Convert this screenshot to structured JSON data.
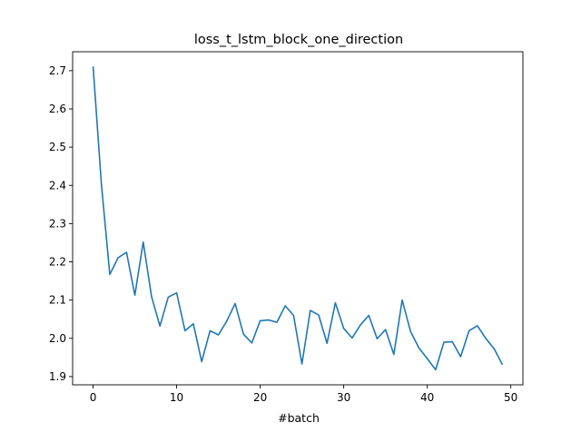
{
  "chart_data": {
    "type": "line",
    "title": "loss_t_lstm_block_one_direction",
    "xlabel": "#batch",
    "ylabel": "",
    "xlim": [
      -2.45,
      51.45
    ],
    "ylim": [
      1.8785,
      2.7495
    ],
    "xticks": [
      0,
      10,
      20,
      30,
      40,
      50
    ],
    "yticks": [
      1.9,
      2.0,
      2.1,
      2.2,
      2.3,
      2.4,
      2.5,
      2.6,
      2.7
    ],
    "xtick_labels": [
      "0",
      "10",
      "20",
      "30",
      "40",
      "50"
    ],
    "ytick_labels": [
      "1.9",
      "2.0",
      "2.1",
      "2.2",
      "2.3",
      "2.4",
      "2.5",
      "2.6",
      "2.7"
    ],
    "grid": false,
    "line_color": "#1f77b4",
    "series": [
      {
        "x": [
          0,
          1,
          2,
          3,
          4,
          5,
          6,
          7,
          8,
          9,
          10,
          11,
          12,
          13,
          14,
          15,
          16,
          17,
          18,
          19,
          20,
          21,
          22,
          23,
          24,
          25,
          26,
          27,
          28,
          29,
          30,
          31,
          32,
          33,
          34,
          35,
          36,
          37,
          38,
          39,
          40,
          41,
          42,
          43,
          44,
          45,
          46,
          47,
          48,
          49
        ],
        "values": [
          2.711,
          2.402,
          2.167,
          2.211,
          2.225,
          2.113,
          2.252,
          2.109,
          2.032,
          2.108,
          2.119,
          2.02,
          2.038,
          1.939,
          2.02,
          2.009,
          2.045,
          2.091,
          2.011,
          1.988,
          2.046,
          2.048,
          2.042,
          2.085,
          2.06,
          1.933,
          2.073,
          2.061,
          1.987,
          2.093,
          2.026,
          2.001,
          2.035,
          2.06,
          1.999,
          2.023,
          1.958,
          2.1,
          2.018,
          1.975,
          1.947,
          1.918,
          1.99,
          1.991,
          1.952,
          2.02,
          2.033,
          2.0,
          1.973,
          1.931
        ]
      }
    ]
  }
}
